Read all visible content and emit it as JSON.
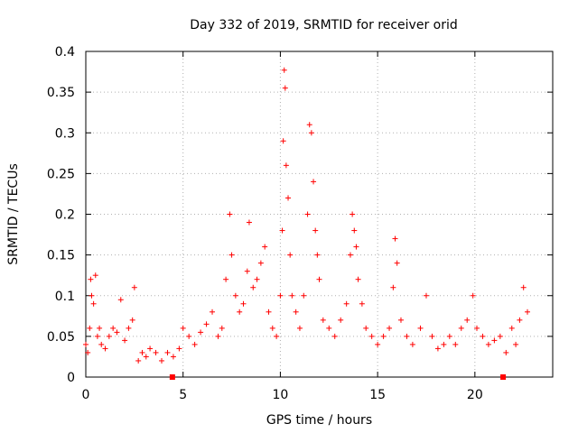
{
  "chart_data": {
    "type": "scatter",
    "title": "Day 332 of 2019, SRMTID for receiver orid",
    "xlabel": "GPS time / hours",
    "ylabel": "SRMTID / TECUs",
    "xlim": [
      0,
      24
    ],
    "ylim": [
      0,
      0.4
    ],
    "xticks": [
      0,
      5,
      10,
      15,
      20
    ],
    "xtick_labels": [
      "0",
      "5",
      "10",
      "15",
      "20"
    ],
    "yticks": [
      0,
      0.05,
      0.1,
      0.15,
      0.2,
      0.25,
      0.3,
      0.35,
      0.4
    ],
    "ytick_labels": [
      "0",
      "0.05",
      "0.1",
      "0.15",
      "0.2",
      "0.25",
      "0.3",
      "0.35",
      "0.4"
    ],
    "grid": true,
    "marker": "+",
    "marker_color": "#ff0000",
    "series": [
      {
        "name": "SRMTID",
        "points": [
          [
            0.0,
            0.04
          ],
          [
            0.1,
            0.03
          ],
          [
            0.2,
            0.06
          ],
          [
            0.25,
            0.12
          ],
          [
            0.3,
            0.1
          ],
          [
            0.4,
            0.09
          ],
          [
            0.5,
            0.125
          ],
          [
            0.6,
            0.05
          ],
          [
            0.7,
            0.06
          ],
          [
            0.8,
            0.04
          ],
          [
            1.0,
            0.035
          ],
          [
            1.2,
            0.05
          ],
          [
            1.4,
            0.06
          ],
          [
            1.6,
            0.055
          ],
          [
            1.8,
            0.095
          ],
          [
            2.0,
            0.045
          ],
          [
            2.2,
            0.06
          ],
          [
            2.4,
            0.07
          ],
          [
            2.5,
            0.11
          ],
          [
            2.7,
            0.02
          ],
          [
            2.9,
            0.03
          ],
          [
            3.1,
            0.025
          ],
          [
            3.3,
            0.035
          ],
          [
            3.6,
            0.03
          ],
          [
            3.9,
            0.02
          ],
          [
            4.2,
            0.03
          ],
          [
            4.5,
            0.025
          ],
          [
            4.8,
            0.035
          ],
          [
            5.0,
            0.06
          ],
          [
            5.3,
            0.05
          ],
          [
            5.6,
            0.04
          ],
          [
            5.9,
            0.055
          ],
          [
            6.2,
            0.065
          ],
          [
            6.5,
            0.08
          ],
          [
            6.8,
            0.05
          ],
          [
            7.0,
            0.06
          ],
          [
            7.2,
            0.12
          ],
          [
            7.4,
            0.2
          ],
          [
            7.5,
            0.15
          ],
          [
            7.7,
            0.1
          ],
          [
            7.9,
            0.08
          ],
          [
            8.1,
            0.09
          ],
          [
            8.3,
            0.13
          ],
          [
            8.4,
            0.19
          ],
          [
            8.6,
            0.11
          ],
          [
            8.8,
            0.12
          ],
          [
            9.0,
            0.14
          ],
          [
            9.2,
            0.16
          ],
          [
            9.4,
            0.08
          ],
          [
            9.6,
            0.06
          ],
          [
            9.8,
            0.05
          ],
          [
            10.0,
            0.1
          ],
          [
            10.1,
            0.18
          ],
          [
            10.15,
            0.29
          ],
          [
            10.2,
            0.377
          ],
          [
            10.25,
            0.355
          ],
          [
            10.3,
            0.26
          ],
          [
            10.4,
            0.22
          ],
          [
            10.5,
            0.15
          ],
          [
            10.6,
            0.1
          ],
          [
            10.8,
            0.08
          ],
          [
            11.0,
            0.06
          ],
          [
            11.2,
            0.1
          ],
          [
            11.4,
            0.2
          ],
          [
            11.5,
            0.31
          ],
          [
            11.6,
            0.3
          ],
          [
            11.7,
            0.24
          ],
          [
            11.8,
            0.18
          ],
          [
            11.9,
            0.15
          ],
          [
            12.0,
            0.12
          ],
          [
            12.2,
            0.07
          ],
          [
            12.5,
            0.06
          ],
          [
            12.8,
            0.05
          ],
          [
            13.1,
            0.07
          ],
          [
            13.4,
            0.09
          ],
          [
            13.6,
            0.15
          ],
          [
            13.7,
            0.2
          ],
          [
            13.8,
            0.18
          ],
          [
            13.9,
            0.16
          ],
          [
            14.0,
            0.12
          ],
          [
            14.2,
            0.09
          ],
          [
            14.4,
            0.06
          ],
          [
            14.7,
            0.05
          ],
          [
            15.0,
            0.04
          ],
          [
            15.3,
            0.05
          ],
          [
            15.6,
            0.06
          ],
          [
            15.8,
            0.11
          ],
          [
            15.9,
            0.17
          ],
          [
            16.0,
            0.14
          ],
          [
            16.2,
            0.07
          ],
          [
            16.5,
            0.05
          ],
          [
            16.8,
            0.04
          ],
          [
            17.2,
            0.06
          ],
          [
            17.5,
            0.1
          ],
          [
            17.8,
            0.05
          ],
          [
            18.1,
            0.035
          ],
          [
            18.4,
            0.04
          ],
          [
            18.7,
            0.05
          ],
          [
            19.0,
            0.04
          ],
          [
            19.3,
            0.06
          ],
          [
            19.6,
            0.07
          ],
          [
            19.9,
            0.1
          ],
          [
            20.1,
            0.06
          ],
          [
            20.4,
            0.05
          ],
          [
            20.7,
            0.04
          ],
          [
            21.0,
            0.045
          ],
          [
            21.3,
            0.05
          ],
          [
            21.6,
            0.03
          ],
          [
            21.9,
            0.06
          ],
          [
            22.1,
            0.04
          ],
          [
            22.3,
            0.07
          ],
          [
            22.5,
            0.11
          ],
          [
            22.7,
            0.08
          ]
        ]
      }
    ],
    "gap_markers_x": [
      4.45,
      21.45
    ]
  }
}
